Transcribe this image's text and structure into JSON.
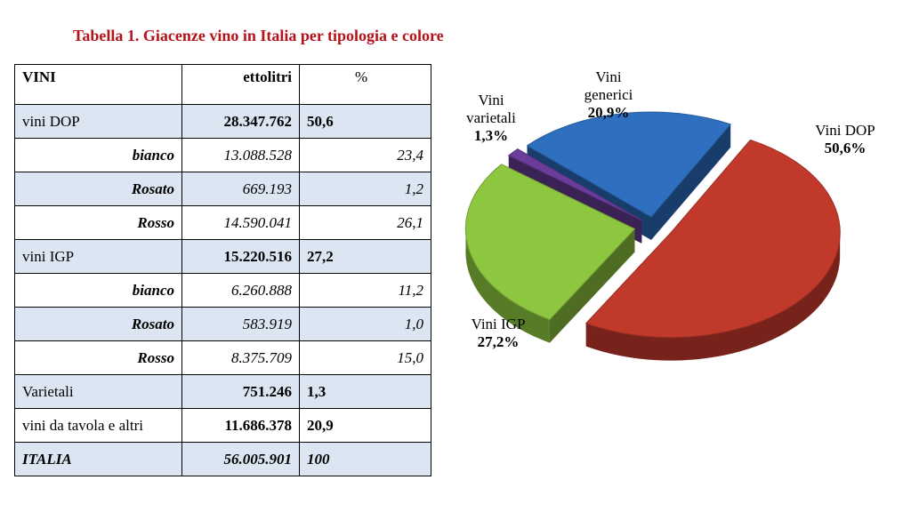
{
  "title": "Tabella 1. Giacenze vino in Italia per tipologia e colore",
  "table": {
    "headers": [
      "VINI",
      "ettolitri",
      "%"
    ],
    "rows": [
      {
        "label": "vini DOP",
        "value": "28.347.762",
        "pct": "50,6",
        "kind": "main"
      },
      {
        "label": "bianco",
        "value": "13.088.528",
        "pct": "23,4",
        "kind": "sub"
      },
      {
        "label": "Rosato",
        "value": "669.193",
        "pct": "1,2",
        "kind": "sub"
      },
      {
        "label": "Rosso",
        "value": "14.590.041",
        "pct": "26,1",
        "kind": "sub"
      },
      {
        "label": "vini IGP",
        "value": "15.220.516",
        "pct": "27,2",
        "kind": "main"
      },
      {
        "label": "bianco",
        "value": "6.260.888",
        "pct": "11,2",
        "kind": "sub"
      },
      {
        "label": "Rosato",
        "value": "583.919",
        "pct": "1,0",
        "kind": "sub"
      },
      {
        "label": "Rosso",
        "value": "8.375.709",
        "pct": "15,0",
        "kind": "sub"
      },
      {
        "label": "Varietali",
        "value": "751.246",
        "pct": "1,3",
        "kind": "main"
      },
      {
        "label": "vini da tavola e altri",
        "value": "11.686.378",
        "pct": "20,9",
        "kind": "main"
      },
      {
        "label": "ITALIA",
        "value": "56.005.901",
        "pct": "100",
        "kind": "total"
      }
    ]
  },
  "chart_data": {
    "type": "pie",
    "labels": [
      "Vini DOP",
      "Vini IGP",
      "Vini varietali",
      "Vini generici"
    ],
    "values": [
      50.6,
      27.2,
      1.3,
      20.9
    ],
    "value_labels": [
      "50,6%",
      "27,2%",
      "1,3%",
      "20,9%"
    ],
    "colors": [
      "#c0392b",
      "#8dc63f",
      "#6a3d9a",
      "#2e6fc0"
    ],
    "exploded": true,
    "three_d": true
  }
}
